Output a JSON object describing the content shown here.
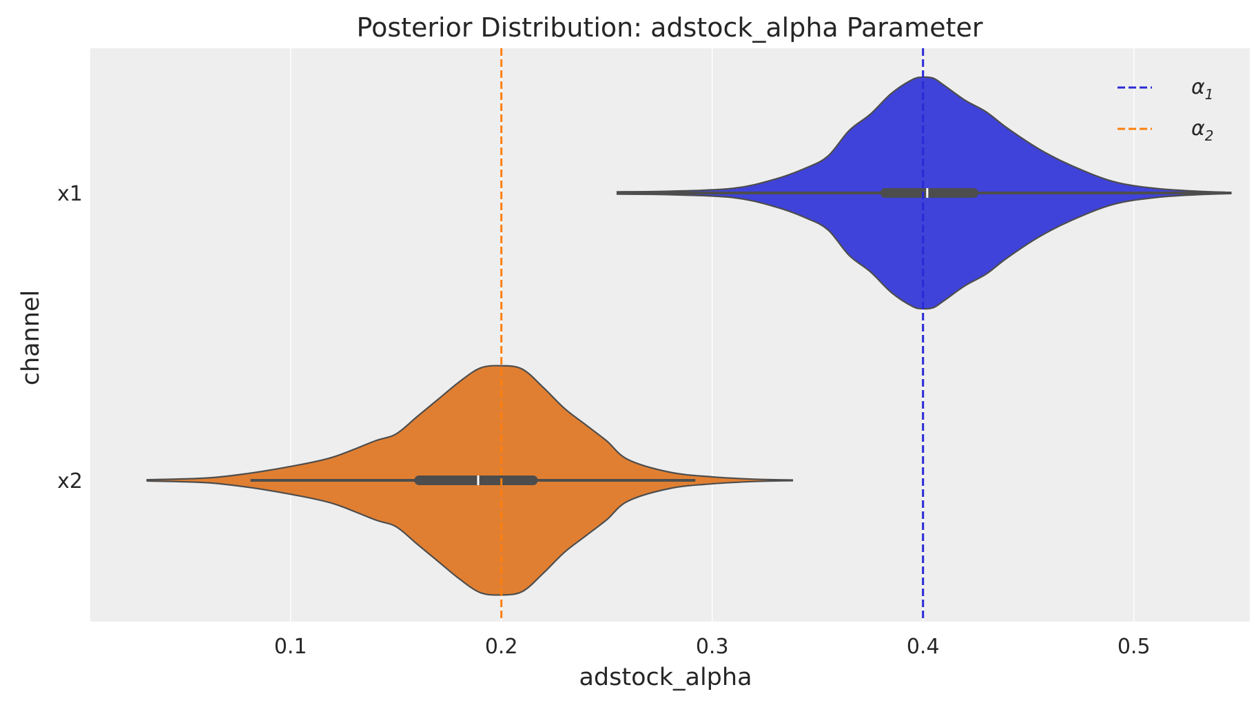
{
  "chart_data": {
    "type": "violin",
    "orientation": "horizontal",
    "title": "Posterior Distribution: adstock_alpha Parameter",
    "xlabel": "adstock_alpha",
    "ylabel": "channel",
    "xlim": [
      0.005,
      0.555
    ],
    "x_ticks": [
      0.1,
      0.2,
      0.3,
      0.4,
      0.5
    ],
    "x_tick_labels": [
      "0.1",
      "0.2",
      "0.3",
      "0.4",
      "0.5"
    ],
    "grid": "vertical",
    "legend_position": "top-right",
    "categories": [
      "x1",
      "x2"
    ],
    "series": [
      {
        "category": "x1",
        "color": "#3f43d9",
        "kde_x": [
          0.255,
          0.28,
          0.31,
          0.33,
          0.345,
          0.355,
          0.365,
          0.375,
          0.385,
          0.395,
          0.4,
          0.405,
          0.41,
          0.42,
          0.43,
          0.44,
          0.455,
          0.47,
          0.49,
          0.51,
          0.53,
          0.546
        ],
        "kde_density": [
          0.01,
          0.015,
          0.04,
          0.12,
          0.22,
          0.32,
          0.54,
          0.68,
          0.86,
          0.98,
          1.0,
          0.99,
          0.93,
          0.8,
          0.7,
          0.56,
          0.38,
          0.24,
          0.1,
          0.04,
          0.015,
          0.005
        ],
        "iqr": [
          0.382,
          0.424
        ],
        "median": 0.402,
        "whisker": [
          0.255,
          0.546
        ]
      },
      {
        "category": "x2",
        "color": "#e07f32",
        "kde_x": [
          0.032,
          0.06,
          0.08,
          0.1,
          0.12,
          0.14,
          0.15,
          0.16,
          0.17,
          0.18,
          0.19,
          0.2,
          0.21,
          0.22,
          0.23,
          0.24,
          0.25,
          0.26,
          0.28,
          0.3,
          0.32,
          0.338
        ],
        "kde_density": [
          0.005,
          0.02,
          0.06,
          0.12,
          0.2,
          0.34,
          0.4,
          0.55,
          0.7,
          0.85,
          0.97,
          0.99,
          0.96,
          0.8,
          0.62,
          0.48,
          0.34,
          0.18,
          0.07,
          0.03,
          0.01,
          0.003
        ],
        "iqr": [
          0.161,
          0.215
        ],
        "median": 0.189,
        "whisker": [
          0.081,
          0.292
        ]
      }
    ],
    "reference_lines": [
      {
        "label": "α",
        "subscript": "1",
        "x": 0.4,
        "color": "#2a2ad6",
        "style": "dashed"
      },
      {
        "label": "α",
        "subscript": "2",
        "x": 0.2,
        "color": "#ff7f0e",
        "style": "dashed"
      }
    ]
  }
}
